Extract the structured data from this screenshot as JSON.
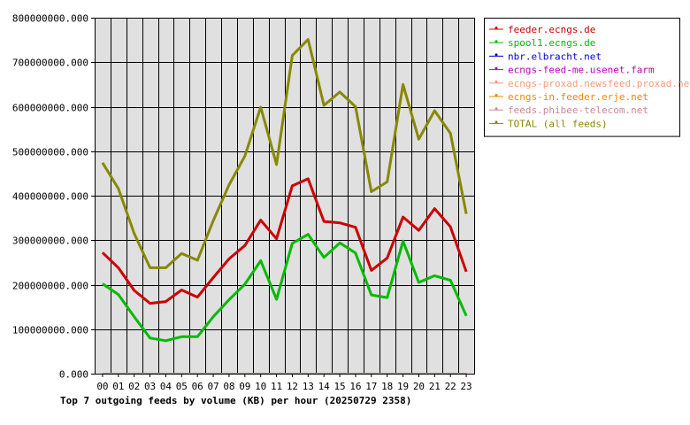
{
  "chart_data": {
    "type": "line",
    "title": "Top 7 outgoing feeds by volume (KB) per hour (20250729 2358)",
    "xlabel": "",
    "ylabel": "",
    "categories": [
      "00",
      "01",
      "02",
      "03",
      "04",
      "05",
      "06",
      "07",
      "08",
      "09",
      "10",
      "11",
      "12",
      "13",
      "14",
      "15",
      "16",
      "17",
      "18",
      "19",
      "20",
      "21",
      "22",
      "23"
    ],
    "ylim": [
      0,
      800000000
    ],
    "yticks": [
      "0.000",
      "100000000.000",
      "200000000.000",
      "300000000.000",
      "400000000.000",
      "500000000.000",
      "600000000.000",
      "700000000.000",
      "800000000.000"
    ],
    "ytick_values": [
      0,
      100000000,
      200000000,
      300000000,
      400000000,
      500000000,
      600000000,
      700000000,
      800000000
    ],
    "grid": true,
    "legend_position": "right",
    "series": [
      {
        "name": "feeder.ecngs.de",
        "color": "#cc0000",
        "values": [
          272000000,
          238000000,
          187000000,
          158000000,
          162000000,
          188000000,
          172000000,
          216000000,
          258000000,
          288000000,
          345000000,
          303000000,
          422000000,
          438000000,
          342000000,
          339000000,
          329000000,
          232000000,
          260000000,
          352000000,
          322000000,
          371000000,
          330000000,
          229000000
        ]
      },
      {
        "name": "spool1.ecngs.de",
        "color": "#00bb00",
        "values": [
          202000000,
          178000000,
          128000000,
          80000000,
          74000000,
          83000000,
          83000000,
          128000000,
          166000000,
          201000000,
          254000000,
          167000000,
          293000000,
          313000000,
          261000000,
          294000000,
          271000000,
          177000000,
          171000000,
          298000000,
          205000000,
          220000000,
          210000000,
          130000000
        ]
      },
      {
        "name": "nbr.elbracht.net",
        "color": "#0000cc",
        "values": [
          0,
          0,
          0,
          0,
          0,
          0,
          0,
          0,
          0,
          0,
          0,
          0,
          0,
          0,
          0,
          0,
          0,
          0,
          0,
          0,
          0,
          0,
          0,
          0
        ]
      },
      {
        "name": "ecngs-feed-me.usenet.farm",
        "color": "#bb00bb",
        "values": [
          0,
          0,
          0,
          0,
          0,
          0,
          0,
          0,
          0,
          0,
          0,
          0,
          0,
          0,
          0,
          0,
          0,
          0,
          0,
          0,
          0,
          0,
          0,
          0
        ]
      },
      {
        "name": "ecngs-proxad.newsfeed.proxad.net",
        "color": "#ff9977",
        "values": [
          0,
          0,
          0,
          0,
          0,
          0,
          0,
          0,
          0,
          0,
          0,
          0,
          0,
          0,
          0,
          0,
          0,
          0,
          0,
          0,
          0,
          0,
          0,
          0
        ]
      },
      {
        "name": "ecngs-in.feeder.erje.net",
        "color": "#ee8800",
        "values": [
          0,
          0,
          0,
          0,
          0,
          0,
          0,
          0,
          0,
          0,
          0,
          0,
          0,
          0,
          0,
          0,
          0,
          0,
          0,
          0,
          0,
          0,
          0,
          0
        ]
      },
      {
        "name": "feeds.phibee-telecom.net",
        "color": "#cc8899",
        "values": [
          0,
          0,
          0,
          0,
          0,
          0,
          0,
          0,
          0,
          0,
          0,
          0,
          0,
          0,
          0,
          0,
          0,
          0,
          0,
          0,
          0,
          0,
          0,
          0
        ]
      },
      {
        "name": "TOTAL (all feeds)",
        "color": "#888800",
        "values": [
          474000000,
          416000000,
          315000000,
          238000000,
          238000000,
          270000000,
          255000000,
          344000000,
          424000000,
          489000000,
          599000000,
          470000000,
          715000000,
          751000000,
          603000000,
          633000000,
          600000000,
          409000000,
          431000000,
          650000000,
          527000000,
          591000000,
          540000000,
          359000000
        ]
      }
    ]
  }
}
